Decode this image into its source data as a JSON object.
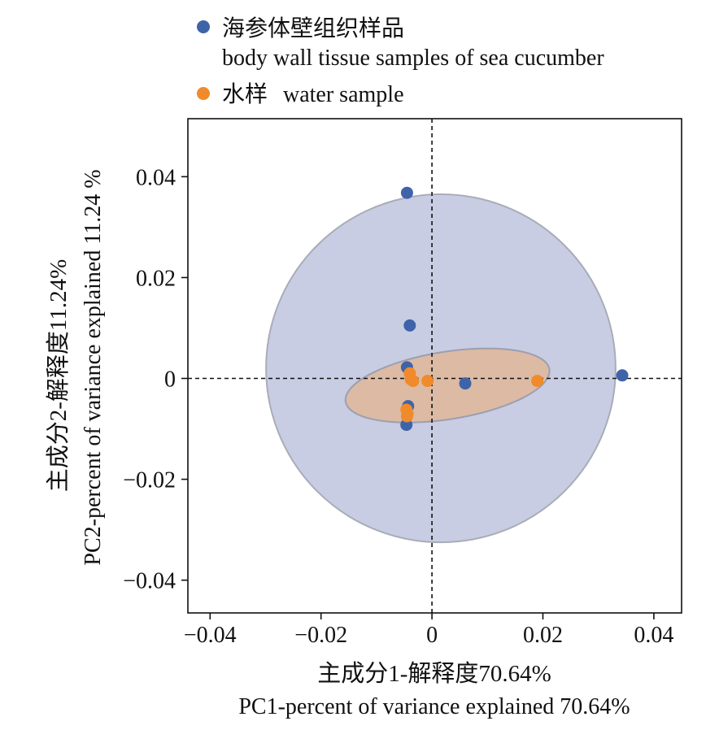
{
  "chart_data": {
    "type": "scatter",
    "title": "",
    "xlabel_cn": "主成分1-解释度70.64%",
    "xlabel_en": "PC1-percent of variance explained 70.64%",
    "ylabel_cn": "主成分2-解释度11.24%",
    "ylabel_en": "PC2-percent of variance explained 11.24 %",
    "xlim": [
      -0.044,
      0.045
    ],
    "ylim": [
      -0.0465,
      0.0515
    ],
    "xticks": [
      -0.04,
      -0.02,
      0,
      0.02,
      0.04
    ],
    "xtick_labels": [
      "−0.04",
      "−0.02",
      "0",
      "0.02",
      "0.04"
    ],
    "yticks": [
      0.04,
      0.02,
      0,
      -0.02,
      -0.04
    ],
    "ytick_labels": [
      "0.04",
      "0.02",
      "0",
      "−0.02",
      "−0.04"
    ],
    "legend": {
      "placement": "top",
      "entries": [
        {
          "label_cn": "海参体壁组织样品",
          "label_en": "body wall tissue samples of sea cucumber",
          "color": "#3F63A8"
        },
        {
          "label_cn": "水样",
          "label_en": "water sample",
          "color": "#F08A2B"
        }
      ]
    },
    "series": [
      {
        "name": "海参体壁组织样品 body wall tissue samples of sea cucumber",
        "color": "#3F63A8",
        "points": [
          {
            "x": -0.0045,
            "y": 0.0368
          },
          {
            "x": -0.004,
            "y": 0.0105
          },
          {
            "x": -0.0045,
            "y": 0.0022
          },
          {
            "x": -0.0043,
            "y": -0.0055
          },
          {
            "x": -0.0046,
            "y": -0.0092
          },
          {
            "x": 0.006,
            "y": -0.001
          },
          {
            "x": 0.0343,
            "y": 0.0006
          }
        ]
      },
      {
        "name": "水样 water sample",
        "color": "#F08A2B",
        "points": [
          {
            "x": -0.004,
            "y": 0.001
          },
          {
            "x": -0.0038,
            "y": -0.0002
          },
          {
            "x": -0.0034,
            "y": -0.0005
          },
          {
            "x": -0.0008,
            "y": -0.0005
          },
          {
            "x": 0.019,
            "y": -0.0005
          },
          {
            "x": -0.0046,
            "y": -0.0062
          },
          {
            "x": -0.0044,
            "y": -0.007
          },
          {
            "x": -0.0045,
            "y": -0.0075
          }
        ]
      }
    ],
    "ellipses": [
      {
        "group": "body wall tissue samples of sea cucumber",
        "cx": 0.0016,
        "cy": 0.002,
        "rx": 0.0315,
        "ry": 0.0345,
        "angle_deg": 0,
        "fill": "#C5CAE2",
        "stroke": "#A9ACB8"
      },
      {
        "group": "water sample",
        "cx": 0.0028,
        "cy": -0.0014,
        "rx": 0.0186,
        "ry": 0.0067,
        "angle_deg": 9,
        "fill": "#DDB8A0",
        "stroke": "#9C9FB0"
      }
    ],
    "reference_lines": {
      "x": 0,
      "y": 0,
      "style": "dashed"
    },
    "grid": false
  }
}
